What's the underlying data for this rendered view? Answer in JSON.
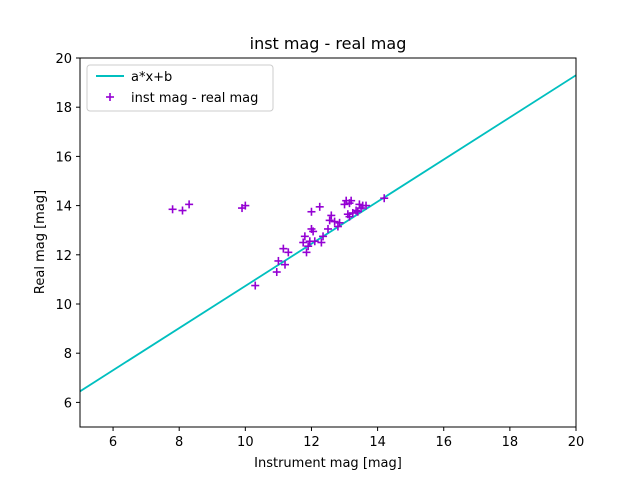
{
  "chart_data": {
    "type": "scatter",
    "title": "inst mag - real mag",
    "xlabel": "Instrument mag [mag]",
    "ylabel": "Real mag [mag]",
    "xlim": [
      5,
      20
    ],
    "ylim": [
      5,
      20
    ],
    "xticks": [
      6,
      8,
      10,
      12,
      14,
      16,
      18,
      20
    ],
    "yticks": [
      6,
      8,
      10,
      12,
      14,
      16,
      18,
      20
    ],
    "grid": false,
    "legend_position": "top-left",
    "series": [
      {
        "name": "a*x+b",
        "kind": "line",
        "color": "#00bfbf",
        "x": [
          5,
          20
        ],
        "y": [
          6.45,
          19.3
        ]
      },
      {
        "name": "inst mag - real mag",
        "kind": "scatter",
        "marker": "+",
        "color": "#9400d3",
        "points": [
          [
            7.8,
            13.85
          ],
          [
            8.1,
            13.8
          ],
          [
            8.3,
            14.05
          ],
          [
            9.9,
            13.9
          ],
          [
            10.0,
            14.0
          ],
          [
            10.3,
            10.75
          ],
          [
            10.95,
            11.3
          ],
          [
            11.0,
            11.75
          ],
          [
            11.15,
            12.25
          ],
          [
            11.2,
            11.6
          ],
          [
            11.3,
            12.1
          ],
          [
            11.75,
            12.5
          ],
          [
            11.8,
            12.75
          ],
          [
            11.85,
            12.1
          ],
          [
            11.9,
            12.35
          ],
          [
            11.95,
            12.55
          ],
          [
            12.0,
            13.05
          ],
          [
            12.0,
            13.75
          ],
          [
            12.05,
            12.95
          ],
          [
            12.1,
            12.55
          ],
          [
            12.25,
            13.95
          ],
          [
            12.3,
            12.5
          ],
          [
            12.35,
            12.75
          ],
          [
            12.5,
            13.05
          ],
          [
            12.55,
            13.4
          ],
          [
            12.6,
            13.6
          ],
          [
            12.7,
            13.35
          ],
          [
            12.8,
            13.15
          ],
          [
            12.85,
            13.3
          ],
          [
            13.0,
            14.05
          ],
          [
            13.05,
            14.2
          ],
          [
            13.1,
            13.65
          ],
          [
            13.15,
            13.55
          ],
          [
            13.15,
            14.1
          ],
          [
            13.2,
            14.2
          ],
          [
            13.25,
            13.7
          ],
          [
            13.35,
            13.8
          ],
          [
            13.4,
            13.75
          ],
          [
            13.45,
            14.05
          ],
          [
            13.5,
            13.9
          ],
          [
            13.55,
            14.0
          ],
          [
            13.65,
            14.0
          ],
          [
            14.2,
            14.3
          ]
        ]
      }
    ]
  }
}
